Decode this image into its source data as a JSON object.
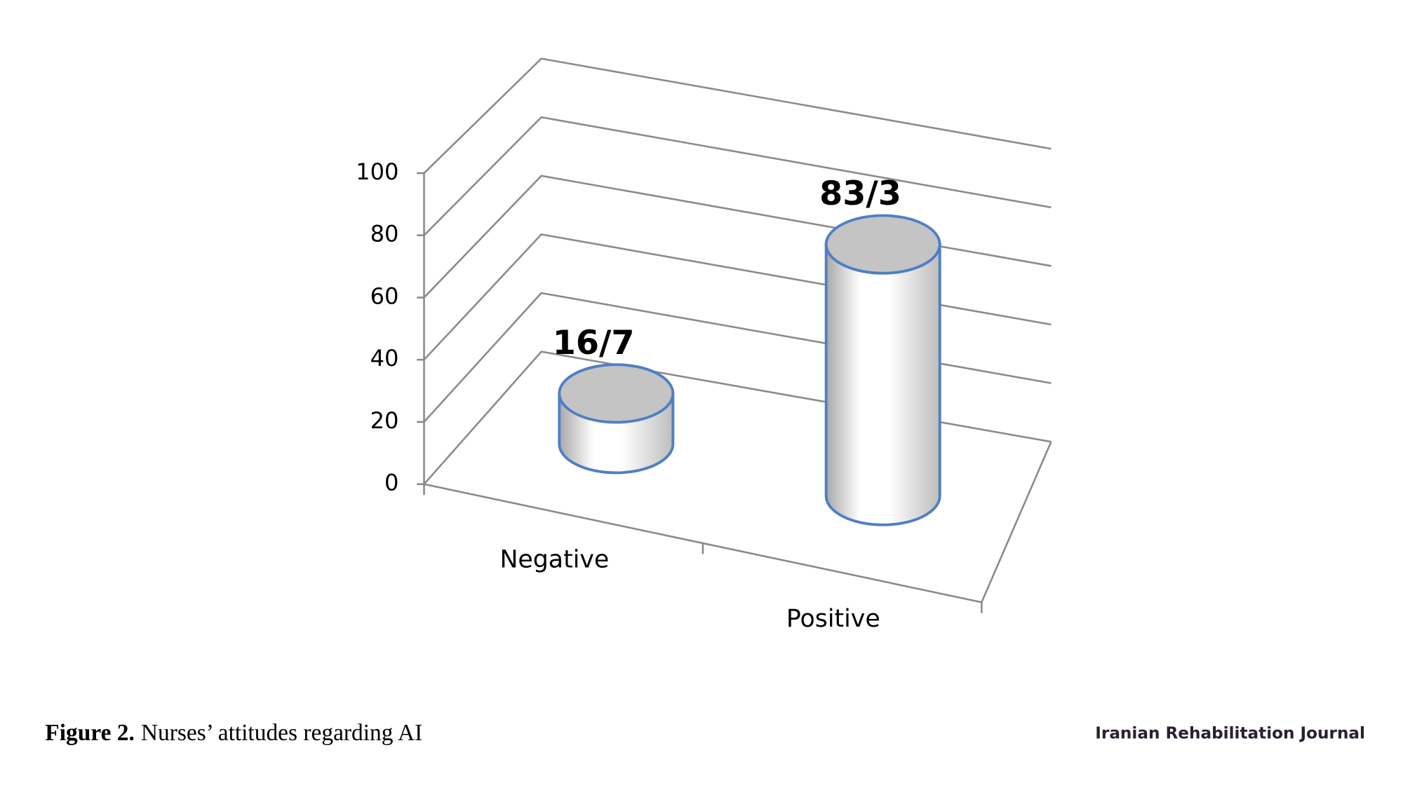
{
  "chart_data": {
    "type": "bar3d",
    "categories": [
      "Negative",
      "Positive"
    ],
    "values": [
      16.7,
      83.3
    ],
    "value_labels": [
      "16/7",
      "83/3"
    ],
    "color": "#4f7fc4",
    "ylim": [
      0,
      100
    ],
    "yticks": [
      0,
      20,
      40,
      60,
      80,
      100
    ],
    "grid": true
  },
  "caption": {
    "label": "Figure 2.",
    "text": "Nurses’ attitudes regarding AI"
  },
  "logo": {
    "text": "Iranian Rehabilitation Journal"
  }
}
